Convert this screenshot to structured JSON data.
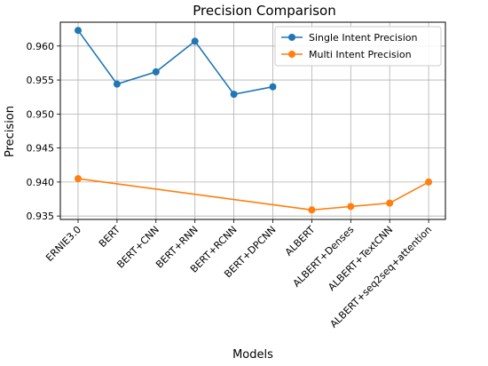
{
  "chart_data": {
    "type": "line",
    "title": "Precision Comparison",
    "xlabel": "Models",
    "ylabel": "Precision",
    "categories": [
      "ERNIE3.0",
      "BERT",
      "BERT+CNN",
      "BERT+RNN",
      "BERT+RCNN",
      "BERT+DPCNN",
      "ALBERT",
      "ALBERT+Denses",
      "ALBERT+TextCNN",
      "ALBERT+seq2seq+attention"
    ],
    "yticks": [
      "0.935",
      "0.940",
      "0.945",
      "0.950",
      "0.955",
      "0.960"
    ],
    "ylim": [
      0.9345,
      0.9635
    ],
    "grid": true,
    "legend_position": "top-right",
    "series": [
      {
        "name": "Single Intent Precision",
        "color": "#1f77b4",
        "values": [
          0.9623,
          0.9544,
          0.9562,
          0.9607,
          0.9529,
          0.954,
          null,
          null,
          null,
          null
        ]
      },
      {
        "name": "Multi Intent Precision",
        "color": "#ff7f0e",
        "values": [
          0.9405,
          null,
          null,
          null,
          null,
          null,
          0.9359,
          0.9364,
          0.9369,
          0.94
        ]
      }
    ]
  }
}
